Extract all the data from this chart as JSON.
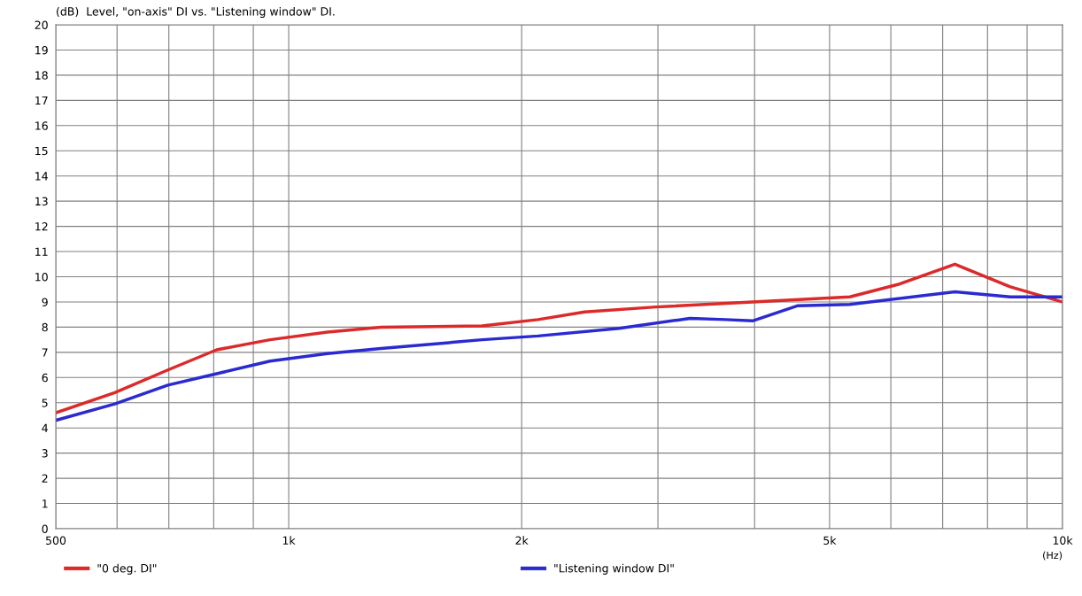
{
  "chart_data": {
    "type": "line",
    "title": "Level, \"on-axis\" DI vs. \"Listening window\" DI.",
    "ylabel": "(dB)",
    "xlabel": "(Hz)",
    "log": "x",
    "grid": true,
    "legend": "bottom",
    "marker": "none",
    "line_style": "solid",
    "xlim": [
      500,
      10000
    ],
    "xticks": [
      500,
      {
        "value": 600,
        "label": null
      },
      {
        "value": 700,
        "label": null
      },
      {
        "value": 800,
        "label": null
      },
      {
        "value": 900,
        "label": null
      },
      {
        "value": 1000,
        "label": "1k"
      },
      {
        "value": 2000,
        "label": "2k"
      },
      {
        "value": 3000,
        "label": null
      },
      {
        "value": 4000,
        "label": null
      },
      {
        "value": 5000,
        "label": "5k"
      },
      {
        "value": 6000,
        "label": null
      },
      {
        "value": 7000,
        "label": null
      },
      {
        "value": 8000,
        "label": null
      },
      {
        "value": 9000,
        "label": null
      },
      {
        "value": 10000,
        "label": "10k"
      }
    ],
    "ylim": [
      0,
      20
    ],
    "yticks": [
      0,
      1,
      2,
      3,
      4,
      5,
      6,
      7,
      8,
      9,
      10,
      11,
      12,
      13,
      14,
      15,
      16,
      17,
      18,
      19,
      20
    ],
    "series": [
      {
        "name": "\"0 deg. DI\"",
        "color": "#dc2a2a",
        "x": [
          500,
          596,
          698,
          807,
          946,
          1122,
          1316,
          1778,
          2100,
          2412,
          2982,
          3976,
          5310,
          6140,
          7260,
          8560,
          10000
        ],
        "values": [
          4.6,
          5.4,
          6.3,
          7.1,
          7.5,
          7.8,
          8.0,
          8.05,
          8.3,
          8.6,
          8.8,
          9.0,
          9.2,
          9.7,
          10.5,
          9.6,
          9.0
        ]
      },
      {
        "name": "\"Listening window DI\"",
        "color": "#2a2ad0",
        "x": [
          500,
          596,
          698,
          807,
          946,
          1122,
          1316,
          1778,
          2100,
          2675,
          3300,
          3670,
          3976,
          4550,
          5310,
          7260,
          8560,
          10000
        ],
        "values": [
          4.3,
          4.95,
          5.7,
          6.15,
          6.65,
          6.95,
          7.15,
          7.5,
          7.65,
          7.95,
          8.35,
          8.3,
          8.25,
          8.85,
          8.9,
          9.4,
          9.2,
          9.2
        ]
      }
    ]
  }
}
